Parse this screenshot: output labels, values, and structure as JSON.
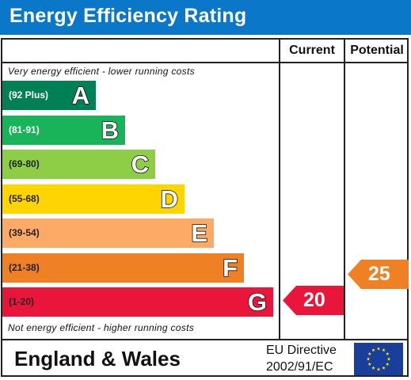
{
  "header": {
    "title": "Energy Efficiency Rating"
  },
  "columns": {
    "current": "Current",
    "potential": "Potential"
  },
  "notes": {
    "top": "Very energy efficient - lower running costs",
    "bottom": "Not energy efficient - higher running costs"
  },
  "footer": {
    "region": "England & Wales",
    "directive_line1": "EU Directive",
    "directive_line2": "2002/91/EC",
    "flag_icon": "eu-flag-icon"
  },
  "chart_data": {
    "type": "bar",
    "title": "Energy Efficiency Rating",
    "categories": [
      "A",
      "B",
      "C",
      "D",
      "E",
      "F",
      "G"
    ],
    "bands": [
      {
        "letter": "A",
        "range": "(92 Plus)",
        "min": 92,
        "max": 100,
        "color": "#008054"
      },
      {
        "letter": "B",
        "range": "(81-91)",
        "min": 81,
        "max": 91,
        "color": "#19b459"
      },
      {
        "letter": "C",
        "range": "(69-80)",
        "min": 69,
        "max": 80,
        "color": "#8dce46"
      },
      {
        "letter": "D",
        "range": "(55-68)",
        "min": 55,
        "max": 68,
        "color": "#ffd500"
      },
      {
        "letter": "E",
        "range": "(39-54)",
        "min": 39,
        "max": 54,
        "color": "#fcaa65"
      },
      {
        "letter": "F",
        "range": "(21-38)",
        "min": 21,
        "max": 38,
        "color": "#ef8023"
      },
      {
        "letter": "G",
        "range": "(1-20)",
        "min": 1,
        "max": 20,
        "color": "#e9153b"
      }
    ],
    "series": [
      {
        "name": "Current",
        "value": 20,
        "band": "G",
        "color": "#e9153b"
      },
      {
        "name": "Potential",
        "value": 25,
        "band": "F",
        "color": "#ef8023"
      }
    ]
  }
}
